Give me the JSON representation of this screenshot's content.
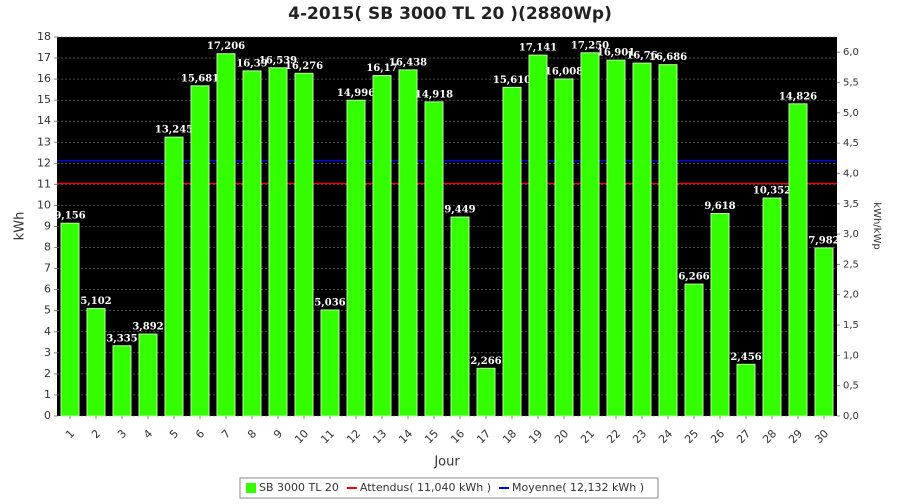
{
  "chart_data": {
    "type": "bar",
    "title": "4-2015( SB 3000 TL 20 )(2880Wp)",
    "xlabel": "Jour",
    "ylabel": "kWh",
    "y2label": "kWh/kWp",
    "categories": [
      "1",
      "2",
      "3",
      "4",
      "5",
      "6",
      "7",
      "8",
      "9",
      "10",
      "11",
      "12",
      "13",
      "14",
      "15",
      "16",
      "17",
      "18",
      "19",
      "20",
      "21",
      "22",
      "23",
      "24",
      "25",
      "26",
      "27",
      "28",
      "29",
      "30"
    ],
    "series": [
      {
        "name": "SB 3000 TL 20",
        "color": "#33ff00",
        "values": [
          9.156,
          5.102,
          3.335,
          3.892,
          13.245,
          15.681,
          17.206,
          16.39,
          16.539,
          16.276,
          5.036,
          14.996,
          16.17,
          16.438,
          14.918,
          9.449,
          2.266,
          15.61,
          17.141,
          16.008,
          17.25,
          16.901,
          16.76,
          16.686,
          6.266,
          9.618,
          2.456,
          10.352,
          14.826,
          7.982
        ],
        "value_labels": [
          "9,156",
          "5,102",
          "3,335",
          "3,892",
          "13,245",
          "15,681",
          "17,206",
          "16,39",
          "16,539",
          "16,276",
          "5,036",
          "14,996",
          "16,17",
          "16,438",
          "14,918",
          "9,449",
          "2,266",
          "15,610",
          "17,141",
          "16,008",
          "17,250",
          "16,901",
          "16,76",
          "16,686",
          "6,266",
          "9,618",
          "2,456",
          "10,352",
          "14,826",
          "7,982"
        ]
      }
    ],
    "reference_lines": [
      {
        "name": "Attendus( 11,040 kWh )",
        "value": 11.04,
        "color": "#ff0000"
      },
      {
        "name": "Moyenne( 12,132 kWh )",
        "value": 12.132,
        "color": "#0000ff"
      }
    ],
    "ylim": [
      0,
      18
    ],
    "yticks": [
      0,
      1,
      2,
      3,
      4,
      5,
      6,
      7,
      8,
      9,
      10,
      11,
      12,
      13,
      14,
      15,
      16,
      17,
      18
    ],
    "y2lim": [
      0,
      6.25
    ],
    "y2ticks": [
      {
        "value": 0,
        "label": "0,0"
      },
      {
        "value": 0.5,
        "label": "0,5"
      },
      {
        "value": 1,
        "label": "1,0"
      },
      {
        "value": 1.5,
        "label": "1,5"
      },
      {
        "value": 2,
        "label": "2,0"
      },
      {
        "value": 2.5,
        "label": "2,5"
      },
      {
        "value": 3,
        "label": "3,0"
      },
      {
        "value": 3.5,
        "label": "3,5"
      },
      {
        "value": 4,
        "label": "4,0"
      },
      {
        "value": 4.5,
        "label": "4,5"
      },
      {
        "value": 5,
        "label": "5,0"
      },
      {
        "value": 5.5,
        "label": "5,5"
      },
      {
        "value": 6,
        "label": "6,0"
      }
    ],
    "grid": true,
    "legend": "bottom"
  }
}
